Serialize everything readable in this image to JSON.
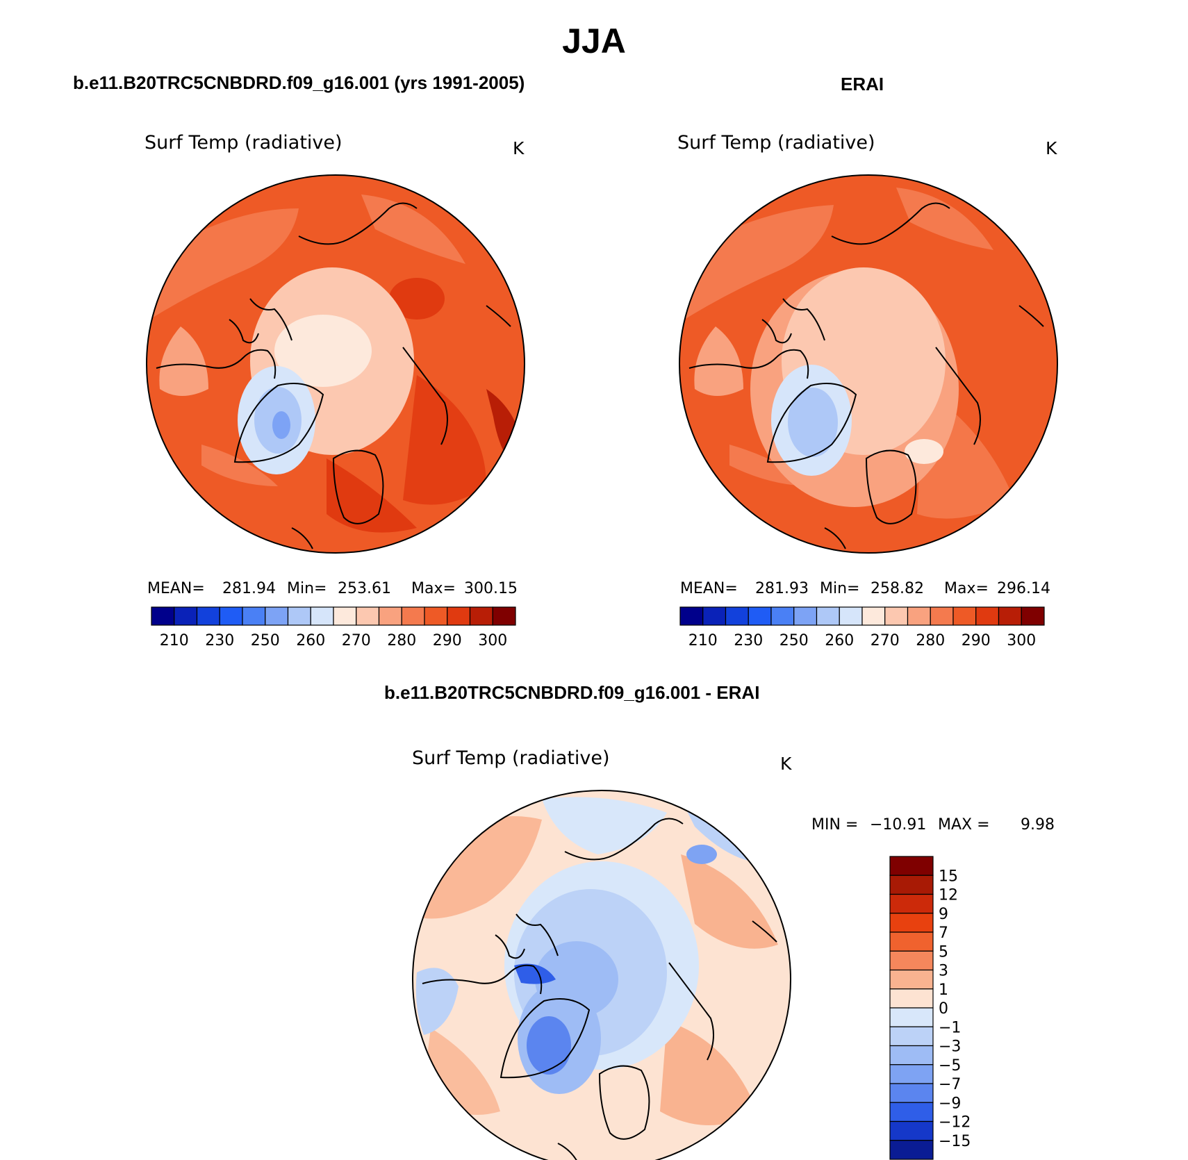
{
  "figure_title": "JJA",
  "chart_data": [
    {
      "type": "heatmap",
      "panel_title": "b.e11.B20TRC5CNBDRD.f09_g16.001 (yrs 1991-2005)",
      "variable": "Surf Temp (radiative)",
      "units": "K",
      "projection": "north polar stereographic",
      "stats": {
        "mean_label": "MEAN=",
        "mean": "281.94",
        "min_label": "Min=",
        "min": "253.61",
        "max_label": "Max=",
        "max": "300.15"
      },
      "colorbar": {
        "orientation": "horizontal",
        "levels": [
          210,
          220,
          230,
          240,
          250,
          255,
          260,
          265,
          270,
          275,
          280,
          285,
          290,
          295,
          300
        ],
        "tick_labels": [
          "210",
          "230",
          "250",
          "260",
          "270",
          "280",
          "290",
          "300"
        ],
        "colors": [
          "#00008b",
          "#0a22b8",
          "#1241dc",
          "#1f5cf5",
          "#4a80f5",
          "#7da3f5",
          "#aec8f7",
          "#d6e5fa",
          "#fde9dc",
          "#fcc8b0",
          "#f9a27f",
          "#f47a4e",
          "#ee5a26",
          "#e03a10",
          "#b81e06",
          "#7f0000"
        ]
      }
    },
    {
      "type": "heatmap",
      "panel_title": "ERAI",
      "variable": "Surf Temp (radiative)",
      "units": "K",
      "projection": "north polar stereographic",
      "stats": {
        "mean_label": "MEAN=",
        "mean": "281.93",
        "min_label": "Min=",
        "min": "258.82",
        "max_label": "Max=",
        "max": "296.14"
      },
      "colorbar": {
        "orientation": "horizontal",
        "levels": [
          210,
          220,
          230,
          240,
          250,
          255,
          260,
          265,
          270,
          275,
          280,
          285,
          290,
          295,
          300
        ],
        "tick_labels": [
          "210",
          "230",
          "250",
          "260",
          "270",
          "280",
          "290",
          "300"
        ],
        "colors": [
          "#00008b",
          "#0a22b8",
          "#1241dc",
          "#1f5cf5",
          "#4a80f5",
          "#7da3f5",
          "#aec8f7",
          "#d6e5fa",
          "#fde9dc",
          "#fcc8b0",
          "#f9a27f",
          "#f47a4e",
          "#ee5a26",
          "#e03a10",
          "#b81e06",
          "#7f0000"
        ]
      }
    },
    {
      "type": "heatmap",
      "panel_title": "b.e11.B20TRC5CNBDRD.f09_g16.001 - ERAI",
      "variable": "Surf Temp (radiative)",
      "units": "K",
      "projection": "north polar stereographic",
      "stats": {
        "min_label": "MIN =",
        "min": "−10.91",
        "max_label": "MAX =",
        "max": "9.98"
      },
      "colorbar": {
        "orientation": "vertical",
        "levels": [
          15,
          12,
          9,
          7,
          5,
          3,
          1,
          0,
          -1,
          -3,
          -5,
          -7,
          -9,
          -12,
          -15
        ],
        "tick_labels": [
          "15",
          "12",
          "9",
          "7",
          "5",
          "3",
          "1",
          "0",
          "−1",
          "−3",
          "−5",
          "−7",
          "−9",
          "−12",
          "−15"
        ],
        "colors": [
          "#7f0000",
          "#a81a05",
          "#cc2a0a",
          "#e8410f",
          "#f0622e",
          "#f5875c",
          "#f9b390",
          "#fde3d2",
          "#d8e7fa",
          "#bcd2f7",
          "#9ebcf5",
          "#7ea3f3",
          "#5b85ef",
          "#2f5ee8",
          "#1538c9",
          "#0a1c94"
        ]
      }
    }
  ]
}
